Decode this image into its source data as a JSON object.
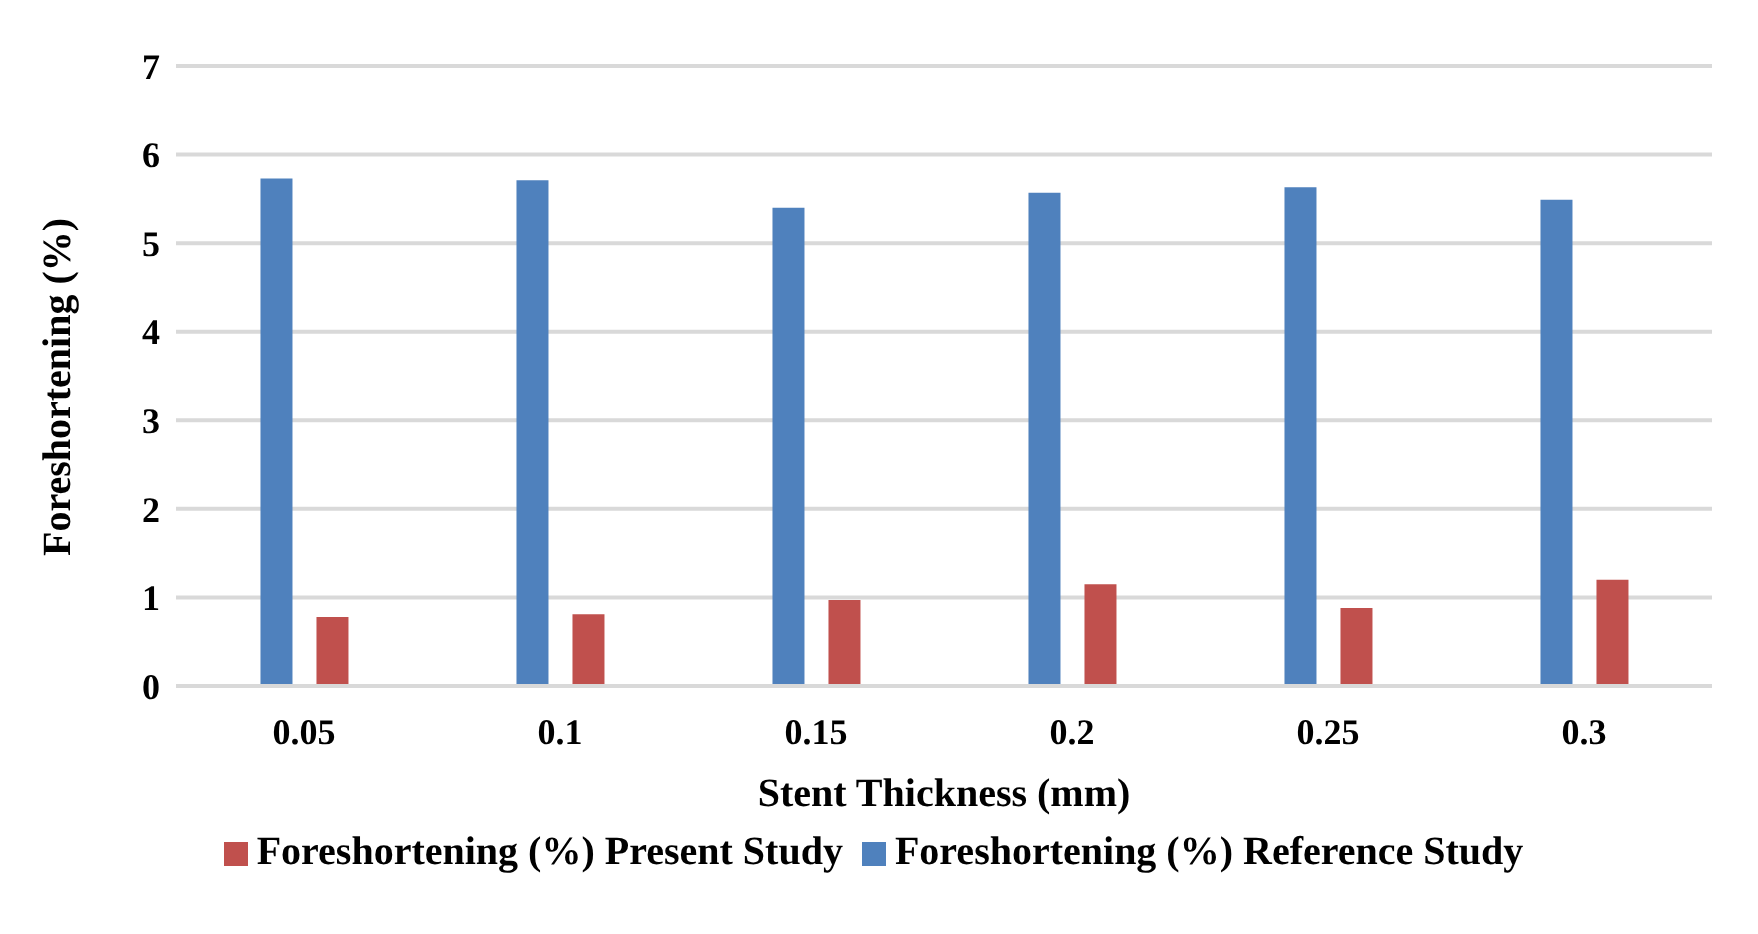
{
  "chart_data": {
    "type": "bar",
    "xlabel": "Stent Thickness (mm)",
    "ylabel": "Foreshortening (%)",
    "categories": [
      "0.05",
      "0.1",
      "0.15",
      "0.2",
      "0.25",
      "0.3"
    ],
    "series": [
      {
        "name": "Foreshortening (%) Reference Study",
        "color": "#4f81bd",
        "values": [
          5.73,
          5.71,
          5.4,
          5.57,
          5.63,
          5.49
        ]
      },
      {
        "name": "Foreshortening (%) Present Study",
        "color": "#c0504d",
        "values": [
          0.78,
          0.81,
          0.97,
          1.15,
          0.88,
          1.2
        ]
      }
    ],
    "ylim": [
      0,
      7
    ],
    "yticks": [
      0,
      1,
      2,
      3,
      4,
      5,
      6,
      7
    ],
    "grid": "y",
    "legend": "bottom"
  }
}
